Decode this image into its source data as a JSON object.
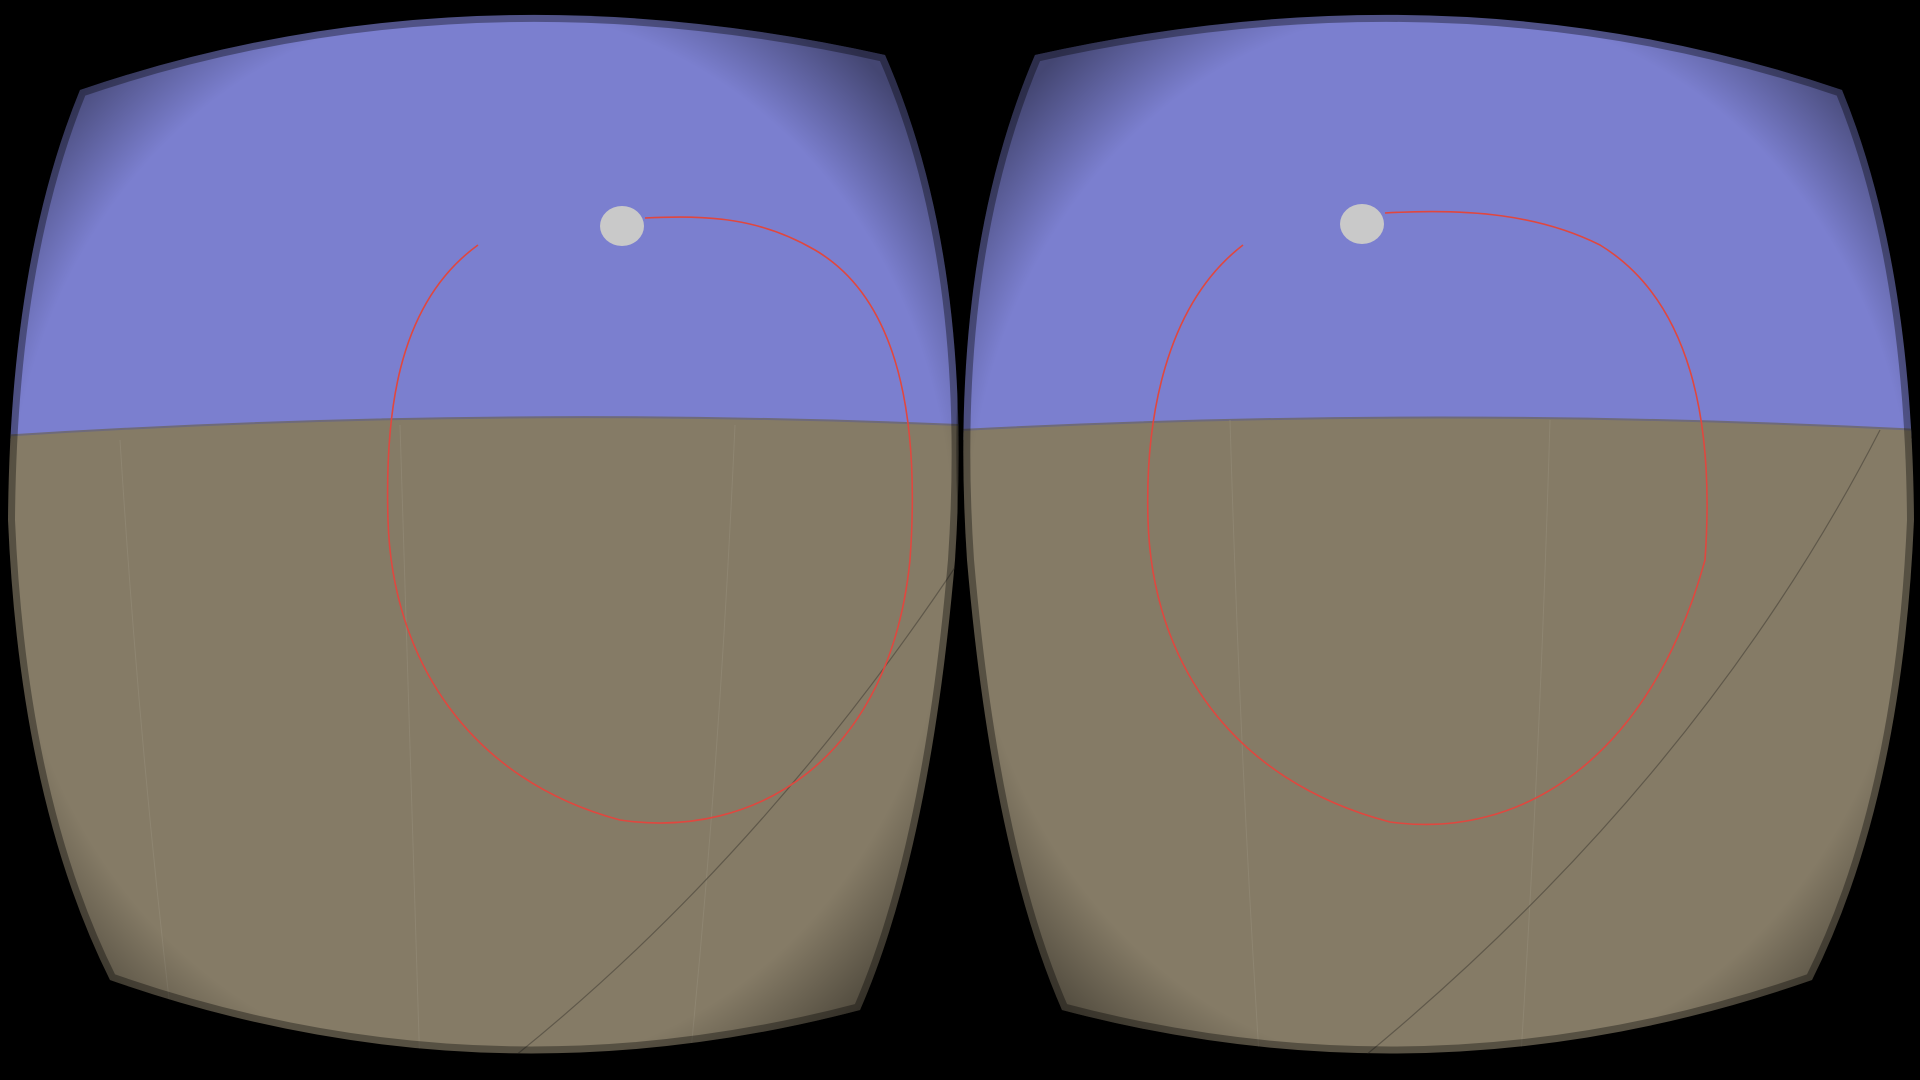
{
  "app": {
    "mode": "stereoscopic-vr"
  },
  "colors": {
    "background": "#000000",
    "sky": "#7b7fcf",
    "ground": "#857b66",
    "ground_far": "#7f7663",
    "horizon_line": "#6e6a7a",
    "path": "#e0473f",
    "cursor": "#c9c9c9",
    "grid_line": "#958c78",
    "arc_line": "#5f584a",
    "lens_shadow": "#000000"
  },
  "eyes": [
    {
      "id": "left",
      "label": "left-eye-viewport"
    },
    {
      "id": "right",
      "label": "right-eye-viewport"
    }
  ]
}
